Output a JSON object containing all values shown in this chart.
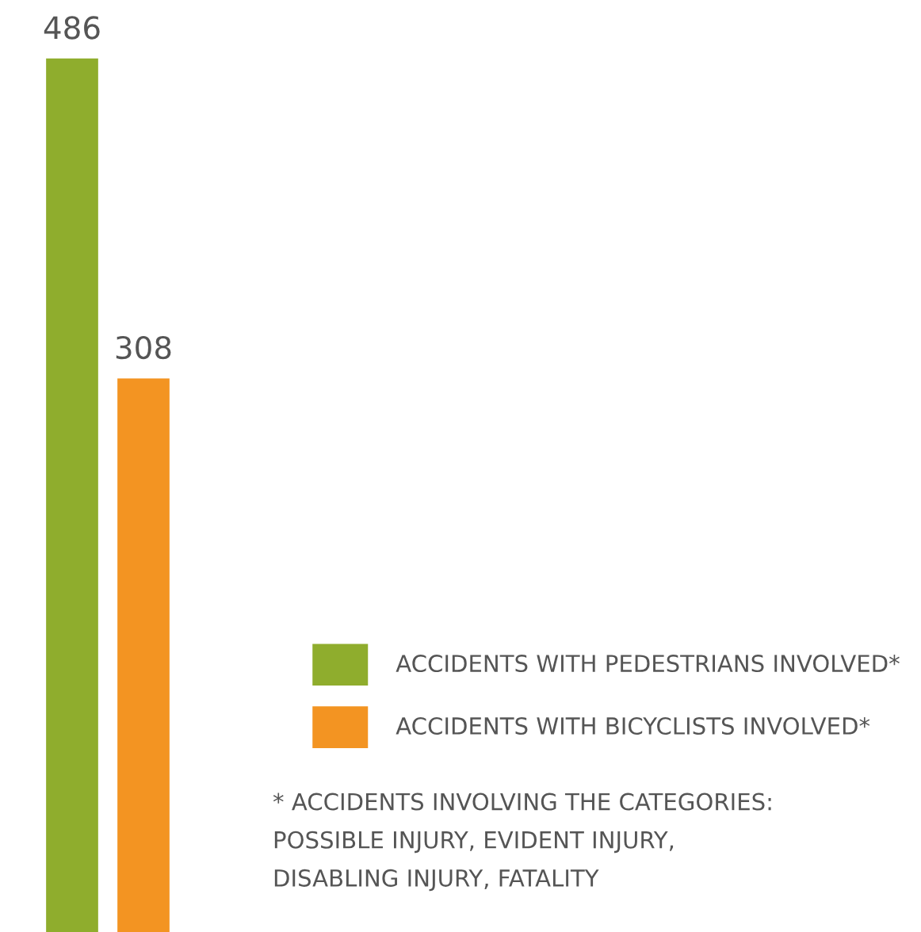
{
  "chart_data": {
    "type": "bar",
    "categories": [
      null
    ],
    "series": [
      {
        "name": "ACCIDENTS WITH PEDESTRIANS INVOLVED*",
        "color": "#8fad2d",
        "values": [
          486
        ]
      },
      {
        "name": "ACCIDENTS WITH BICYCLISTS INVOLVED*",
        "color": "#f39422",
        "values": [
          308
        ]
      }
    ],
    "data_labels": true,
    "legend": "bottom right",
    "annotations": [
      "* ACCIDENTS INVOLVING THE CATEGORIES:\nPOSSIBLE INJURY, EVIDENT INJURY,\nDISABLING INJURY, FATALITY"
    ]
  }
}
